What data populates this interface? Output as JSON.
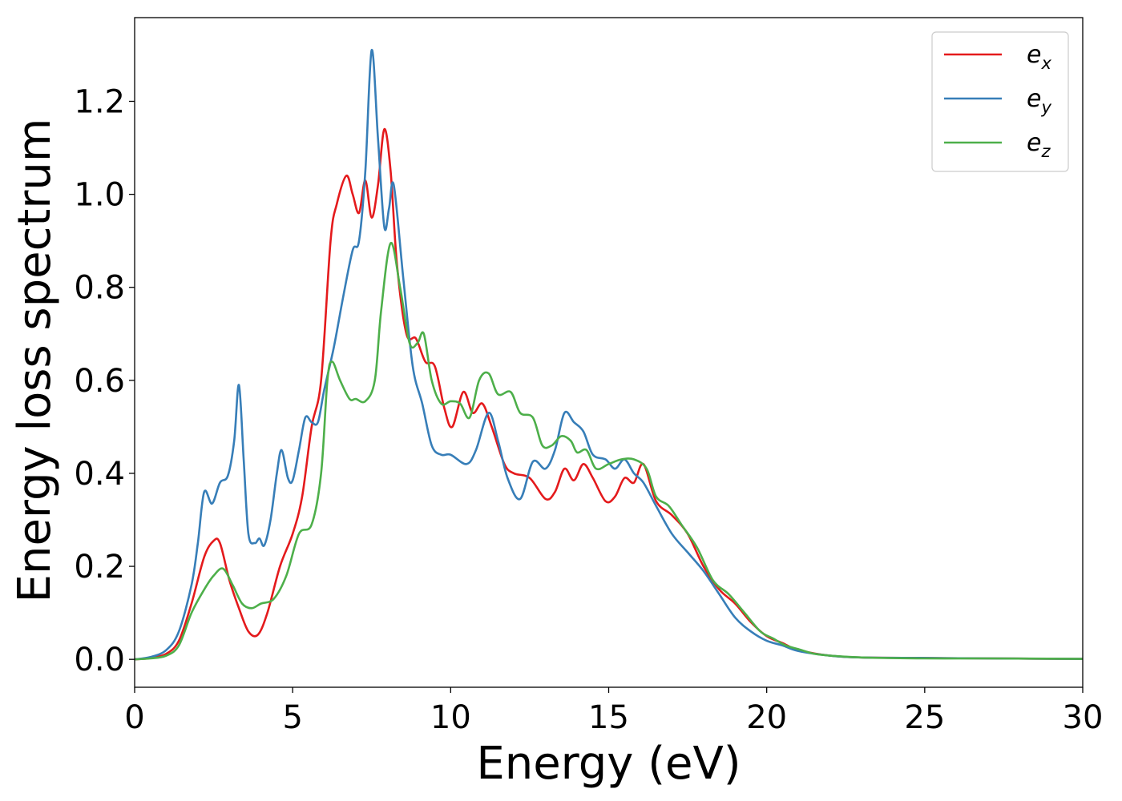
{
  "chart_data": {
    "type": "line",
    "title": "",
    "xlabel": "Energy (eV)",
    "ylabel": "Energy loss spectrum",
    "xlim": [
      0,
      30
    ],
    "ylim": [
      -0.06,
      1.38
    ],
    "x_ticks": [
      {
        "value": 0,
        "label": "0"
      },
      {
        "value": 5,
        "label": "5"
      },
      {
        "value": 10,
        "label": "10"
      },
      {
        "value": 15,
        "label": "15"
      },
      {
        "value": 20,
        "label": "20"
      },
      {
        "value": 25,
        "label": "25"
      },
      {
        "value": 30,
        "label": "30"
      }
    ],
    "y_ticks": [
      {
        "value": 0.0,
        "label": "0.0"
      },
      {
        "value": 0.2,
        "label": "0.2"
      },
      {
        "value": 0.4,
        "label": "0.4"
      },
      {
        "value": 0.6,
        "label": "0.6"
      },
      {
        "value": 0.8,
        "label": "0.8"
      },
      {
        "value": 1.0,
        "label": "1.0"
      },
      {
        "value": 1.2,
        "label": "1.2"
      }
    ],
    "grid": false,
    "legend": {
      "position": "top-right"
    },
    "series": [
      {
        "name": "e",
        "subscript": "x",
        "color": "#e41a1c",
        "points": [
          [
            0,
            0
          ],
          [
            0.5,
            0.003
          ],
          [
            1.0,
            0.012
          ],
          [
            1.4,
            0.04
          ],
          [
            1.8,
            0.12
          ],
          [
            2.2,
            0.22
          ],
          [
            2.5,
            0.255
          ],
          [
            2.7,
            0.25
          ],
          [
            3.0,
            0.17
          ],
          [
            3.3,
            0.11
          ],
          [
            3.6,
            0.06
          ],
          [
            3.9,
            0.053
          ],
          [
            4.2,
            0.1
          ],
          [
            4.6,
            0.2
          ],
          [
            5.0,
            0.27
          ],
          [
            5.3,
            0.35
          ],
          [
            5.6,
            0.5
          ],
          [
            5.9,
            0.6
          ],
          [
            6.2,
            0.9
          ],
          [
            6.4,
            0.98
          ],
          [
            6.7,
            1.04
          ],
          [
            6.9,
            1.0
          ],
          [
            7.1,
            0.96
          ],
          [
            7.3,
            1.03
          ],
          [
            7.5,
            0.95
          ],
          [
            7.7,
            1.02
          ],
          [
            7.9,
            1.14
          ],
          [
            8.1,
            1.05
          ],
          [
            8.3,
            0.85
          ],
          [
            8.6,
            0.7
          ],
          [
            8.9,
            0.69
          ],
          [
            9.2,
            0.64
          ],
          [
            9.5,
            0.63
          ],
          [
            9.8,
            0.54
          ],
          [
            10.05,
            0.5
          ],
          [
            10.4,
            0.575
          ],
          [
            10.7,
            0.53
          ],
          [
            11.0,
            0.55
          ],
          [
            11.3,
            0.5
          ],
          [
            11.7,
            0.42
          ],
          [
            12.0,
            0.4
          ],
          [
            12.5,
            0.39
          ],
          [
            13.0,
            0.345
          ],
          [
            13.3,
            0.36
          ],
          [
            13.6,
            0.41
          ],
          [
            13.9,
            0.385
          ],
          [
            14.2,
            0.42
          ],
          [
            14.5,
            0.39
          ],
          [
            14.9,
            0.34
          ],
          [
            15.2,
            0.35
          ],
          [
            15.5,
            0.39
          ],
          [
            15.8,
            0.38
          ],
          [
            16.1,
            0.42
          ],
          [
            16.5,
            0.34
          ],
          [
            17.0,
            0.31
          ],
          [
            17.5,
            0.27
          ],
          [
            18.0,
            0.2
          ],
          [
            18.5,
            0.15
          ],
          [
            19.0,
            0.12
          ],
          [
            19.5,
            0.08
          ],
          [
            20.0,
            0.05
          ],
          [
            20.5,
            0.035
          ],
          [
            21.0,
            0.02
          ],
          [
            22.0,
            0.008
          ],
          [
            23.0,
            0.004
          ],
          [
            25.0,
            0.003
          ],
          [
            27.0,
            0.002
          ],
          [
            30.0,
            0.001
          ]
        ]
      },
      {
        "name": "e",
        "subscript": "y",
        "color": "#377eb8",
        "points": [
          [
            0,
            0
          ],
          [
            0.5,
            0.005
          ],
          [
            1.0,
            0.02
          ],
          [
            1.4,
            0.06
          ],
          [
            1.8,
            0.16
          ],
          [
            2.0,
            0.25
          ],
          [
            2.2,
            0.36
          ],
          [
            2.45,
            0.335
          ],
          [
            2.7,
            0.38
          ],
          [
            2.95,
            0.395
          ],
          [
            3.15,
            0.47
          ],
          [
            3.3,
            0.59
          ],
          [
            3.45,
            0.43
          ],
          [
            3.6,
            0.27
          ],
          [
            3.8,
            0.25
          ],
          [
            3.95,
            0.26
          ],
          [
            4.1,
            0.245
          ],
          [
            4.3,
            0.3
          ],
          [
            4.5,
            0.4
          ],
          [
            4.65,
            0.45
          ],
          [
            4.85,
            0.39
          ],
          [
            5.0,
            0.385
          ],
          [
            5.2,
            0.45
          ],
          [
            5.4,
            0.52
          ],
          [
            5.6,
            0.51
          ],
          [
            5.8,
            0.51
          ],
          [
            6.0,
            0.58
          ],
          [
            6.3,
            0.67
          ],
          [
            6.6,
            0.78
          ],
          [
            6.9,
            0.88
          ],
          [
            7.1,
            0.9
          ],
          [
            7.3,
            1.05
          ],
          [
            7.5,
            1.31
          ],
          [
            7.7,
            1.12
          ],
          [
            7.9,
            0.93
          ],
          [
            8.05,
            0.97
          ],
          [
            8.2,
            1.02
          ],
          [
            8.5,
            0.82
          ],
          [
            8.8,
            0.63
          ],
          [
            9.1,
            0.55
          ],
          [
            9.4,
            0.46
          ],
          [
            9.7,
            0.44
          ],
          [
            10.0,
            0.44
          ],
          [
            10.5,
            0.42
          ],
          [
            10.8,
            0.45
          ],
          [
            11.2,
            0.53
          ],
          [
            11.5,
            0.47
          ],
          [
            11.8,
            0.39
          ],
          [
            12.2,
            0.345
          ],
          [
            12.6,
            0.425
          ],
          [
            13.0,
            0.41
          ],
          [
            13.3,
            0.45
          ],
          [
            13.6,
            0.53
          ],
          [
            13.9,
            0.51
          ],
          [
            14.2,
            0.49
          ],
          [
            14.5,
            0.44
          ],
          [
            14.9,
            0.43
          ],
          [
            15.2,
            0.41
          ],
          [
            15.5,
            0.43
          ],
          [
            15.8,
            0.4
          ],
          [
            16.1,
            0.38
          ],
          [
            16.5,
            0.33
          ],
          [
            17.0,
            0.27
          ],
          [
            17.5,
            0.23
          ],
          [
            18.0,
            0.19
          ],
          [
            18.5,
            0.14
          ],
          [
            19.0,
            0.09
          ],
          [
            19.5,
            0.06
          ],
          [
            20.0,
            0.04
          ],
          [
            20.5,
            0.03
          ],
          [
            21.0,
            0.018
          ],
          [
            22.0,
            0.008
          ],
          [
            23.0,
            0.004
          ],
          [
            25.0,
            0.003
          ],
          [
            27.0,
            0.002
          ],
          [
            30.0,
            0.001
          ]
        ]
      },
      {
        "name": "e",
        "subscript": "z",
        "color": "#4daf4a",
        "points": [
          [
            0,
            0
          ],
          [
            0.5,
            0.002
          ],
          [
            1.0,
            0.008
          ],
          [
            1.4,
            0.03
          ],
          [
            1.8,
            0.1
          ],
          [
            2.2,
            0.15
          ],
          [
            2.5,
            0.18
          ],
          [
            2.8,
            0.195
          ],
          [
            3.1,
            0.16
          ],
          [
            3.4,
            0.12
          ],
          [
            3.7,
            0.11
          ],
          [
            4.0,
            0.12
          ],
          [
            4.4,
            0.13
          ],
          [
            4.8,
            0.18
          ],
          [
            5.2,
            0.27
          ],
          [
            5.6,
            0.29
          ],
          [
            5.9,
            0.4
          ],
          [
            6.1,
            0.6
          ],
          [
            6.25,
            0.64
          ],
          [
            6.5,
            0.6
          ],
          [
            6.8,
            0.56
          ],
          [
            7.0,
            0.56
          ],
          [
            7.3,
            0.555
          ],
          [
            7.6,
            0.6
          ],
          [
            7.8,
            0.75
          ],
          [
            8.1,
            0.895
          ],
          [
            8.4,
            0.8
          ],
          [
            8.7,
            0.68
          ],
          [
            8.95,
            0.68
          ],
          [
            9.15,
            0.7
          ],
          [
            9.4,
            0.6
          ],
          [
            9.7,
            0.55
          ],
          [
            10.0,
            0.555
          ],
          [
            10.3,
            0.55
          ],
          [
            10.6,
            0.52
          ],
          [
            10.9,
            0.6
          ],
          [
            11.2,
            0.615
          ],
          [
            11.5,
            0.57
          ],
          [
            11.9,
            0.575
          ],
          [
            12.2,
            0.53
          ],
          [
            12.6,
            0.52
          ],
          [
            12.9,
            0.46
          ],
          [
            13.2,
            0.46
          ],
          [
            13.5,
            0.48
          ],
          [
            13.8,
            0.47
          ],
          [
            14.0,
            0.445
          ],
          [
            14.3,
            0.45
          ],
          [
            14.6,
            0.41
          ],
          [
            15.0,
            0.42
          ],
          [
            15.4,
            0.43
          ],
          [
            15.8,
            0.43
          ],
          [
            16.2,
            0.41
          ],
          [
            16.5,
            0.35
          ],
          [
            16.9,
            0.33
          ],
          [
            17.3,
            0.29
          ],
          [
            17.8,
            0.24
          ],
          [
            18.3,
            0.17
          ],
          [
            18.8,
            0.14
          ],
          [
            19.3,
            0.1
          ],
          [
            19.8,
            0.06
          ],
          [
            20.2,
            0.045
          ],
          [
            20.6,
            0.03
          ],
          [
            21.0,
            0.022
          ],
          [
            21.5,
            0.012
          ],
          [
            22.0,
            0.008
          ],
          [
            23.0,
            0.004
          ],
          [
            25.0,
            0.002
          ],
          [
            27.0,
            0.002
          ],
          [
            30.0,
            0.001
          ]
        ]
      }
    ]
  }
}
